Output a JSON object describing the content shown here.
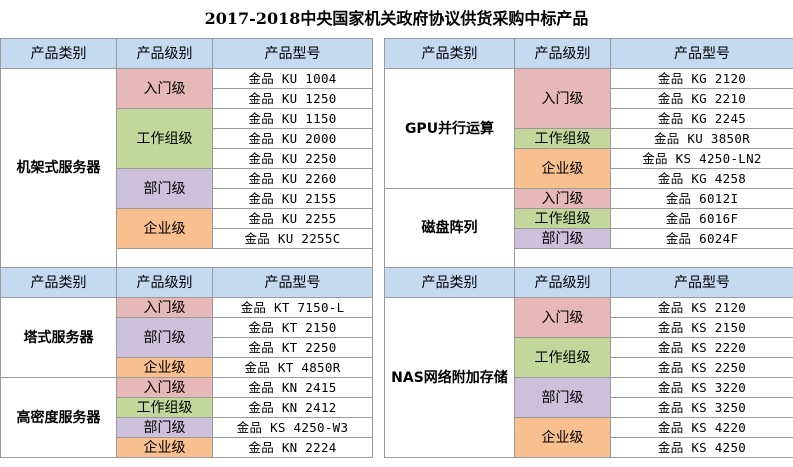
{
  "title": "2017-2018中央国家机关政府协议供货采购中标产品",
  "headers": {
    "category": "产品类别",
    "level": "产品级别",
    "model": "产品型号"
  },
  "colors": {
    "header": "#c5d9f1",
    "entry": "#e6b8b7",
    "workgroup": "#c4d79b",
    "department": "#ccc0da",
    "enterprise": "#fabf8f"
  },
  "top_left": {
    "category": "机架式服务器",
    "levels": [
      "入门级",
      "工作组级",
      "部门级",
      "企业级"
    ],
    "models": [
      "金品 KU 1004",
      "金品 KU 1250",
      "金品 KU 1150",
      "金品 KU 2000",
      "金品 KU 2250",
      "金品 KU 2260",
      "金品 KU 2155",
      "金品 KU 2255",
      "金品 KU 2255C"
    ]
  },
  "top_right": {
    "gpu": {
      "category": "GPU并行运算",
      "levels": [
        "入门级",
        "工作组级",
        "企业级"
      ],
      "models": [
        "金品 KG 2120",
        "金品 KG 2210",
        "金品 KG 2245",
        "金品 KU 3850R",
        "金品 KS 4250-LN2",
        "金品 KG 4258"
      ]
    },
    "disk": {
      "category": "磁盘阵列",
      "levels": [
        "入门级",
        "工作组级",
        "部门级"
      ],
      "models": [
        "金品 6012I",
        "金品 6016F",
        "金品 6024F"
      ]
    }
  },
  "bottom_left": {
    "tower": {
      "category": "塔式服务器",
      "levels": [
        "入门级",
        "部门级",
        "企业级"
      ],
      "models": [
        "金品 KT 7150-L",
        "金品 KT 2150",
        "金品 KT 2250",
        "金品 KT 4850R"
      ]
    },
    "density": {
      "category": "高密度服务器",
      "levels": [
        "入门级",
        "工作组级",
        "部门级",
        "企业级"
      ],
      "models": [
        "金品 KN 2415",
        "金品 KN 2412",
        "金品 KS 4250-W3",
        "金品 KN 2224"
      ]
    }
  },
  "bottom_right": {
    "category": "NAS网络附加存储",
    "levels": [
      "入门级",
      "工作组级",
      "部门级",
      "企业级"
    ],
    "models": [
      "金品 KS 2120",
      "金品 KS 2150",
      "金品 KS 2220",
      "金品 KS 2250",
      "金品 KS 3220",
      "金品 KS 3250",
      "金品 KS 4220",
      "金品 KS 4250"
    ]
  }
}
